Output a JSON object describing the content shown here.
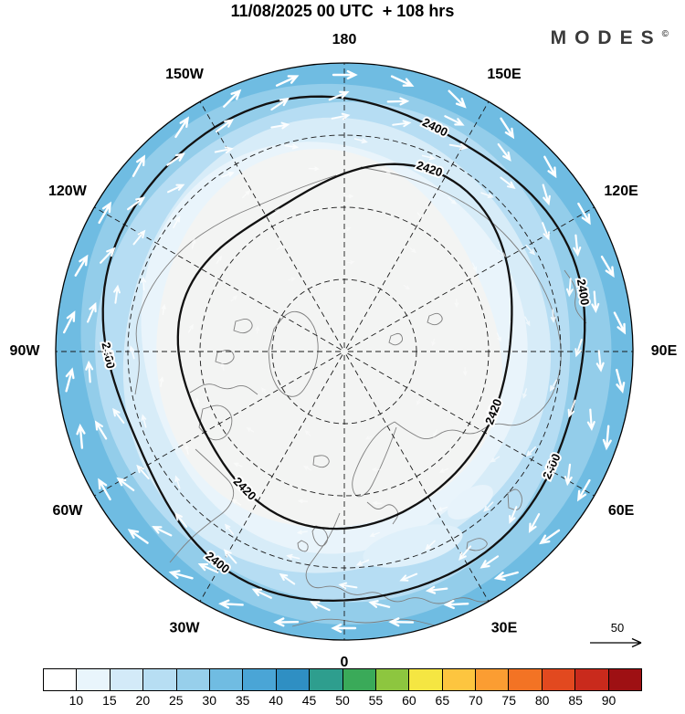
{
  "header": {
    "title": "11/08/2025 00 UTC  + 108 hrs",
    "brand": "MODES",
    "brand_mark": "©"
  },
  "map": {
    "compass_labels": [
      {
        "label": "180",
        "lon": 180
      },
      {
        "label": "150W",
        "lon": -150
      },
      {
        "label": "150E",
        "lon": 150
      },
      {
        "label": "120W",
        "lon": -120
      },
      {
        "label": "120E",
        "lon": 120
      },
      {
        "label": "90W",
        "lon": -90
      },
      {
        "label": "90E",
        "lon": 90
      },
      {
        "label": "60W",
        "lon": -60
      },
      {
        "label": "60E",
        "lon": 60
      },
      {
        "label": "30W",
        "lon": -30
      },
      {
        "label": "30E",
        "lon": 30
      },
      {
        "label": "0",
        "lon": 0
      }
    ],
    "contours": [
      {
        "label": "2400"
      },
      {
        "label": "2420"
      }
    ],
    "wind_reference": {
      "value": "50"
    }
  },
  "colorbar": {
    "labels": [
      "10",
      "15",
      "20",
      "25",
      "30",
      "35",
      "40",
      "45",
      "50",
      "55",
      "60",
      "65",
      "70",
      "75",
      "80",
      "85",
      "90"
    ],
    "colors": [
      "#ffffff",
      "#e9f5fc",
      "#d3eaf8",
      "#b7def3",
      "#97cfeb",
      "#70bce2",
      "#4aa5d6",
      "#2f8fc3",
      "#2e9e8e",
      "#3aaa59",
      "#8dc63f",
      "#f5e642",
      "#fdc53f",
      "#fb9d32",
      "#f37324",
      "#e2491f",
      "#c92a1c",
      "#9e1013"
    ]
  }
}
